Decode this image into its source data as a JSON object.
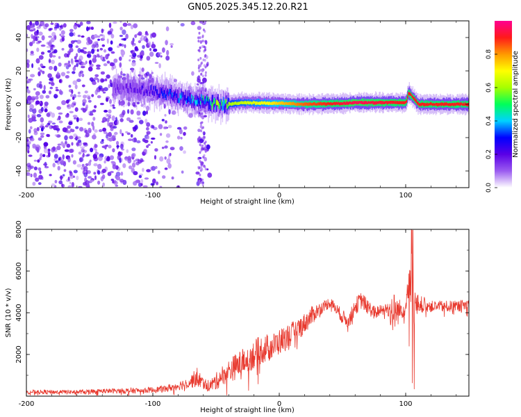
{
  "figure_title": "GN05.2025.345.12.20.R21",
  "chart_data": [
    {
      "type": "heatmap",
      "xlabel": "Height of straight line (km)",
      "ylabel": "Frequency (Hz)",
      "xlim": [
        -200,
        150
      ],
      "ylim": [
        -50,
        50
      ],
      "x_ticks": [
        -200,
        -100,
        0,
        100
      ],
      "x_tick_labels": [
        "-200",
        "-100",
        "0",
        "100"
      ],
      "y_ticks": [
        -40,
        -20,
        0,
        20,
        40
      ],
      "y_tick_labels": [
        "-40",
        "-20",
        "0",
        "20",
        "40"
      ],
      "colorbar": {
        "label": "Normalized spectral amplitude",
        "range": [
          0,
          1
        ],
        "ticks": [
          0.0,
          0.2,
          0.4,
          0.6,
          0.8
        ],
        "tick_labels": [
          "0.0",
          "0.2",
          "0.4",
          "0.6",
          "0.8"
        ],
        "colormap": [
          "#ffffff",
          "#9b5cf0",
          "#5a00e6",
          "#0000ff",
          "#00d2ff",
          "#00ff5a",
          "#a6ff00",
          "#ffff00",
          "#ff9900",
          "#ff1a1a",
          "#ff0090"
        ]
      },
      "ridge_frequency_hz": [
        {
          "x": -130,
          "f": 10
        },
        {
          "x": -110,
          "f": 9
        },
        {
          "x": -95,
          "f": 7
        },
        {
          "x": -85,
          "f": 6
        },
        {
          "x": -75,
          "f": 3
        },
        {
          "x": -60,
          "f": 2
        },
        {
          "x": -50,
          "f": 0
        },
        {
          "x": -40,
          "f": 0
        },
        {
          "x": -30,
          "f": 1
        },
        {
          "x": 0,
          "f": 0.5
        },
        {
          "x": 20,
          "f": 0
        },
        {
          "x": 50,
          "f": 0.5
        },
        {
          "x": 60,
          "f": 1
        },
        {
          "x": 100,
          "f": 1
        },
        {
          "x": 102,
          "f": 7
        },
        {
          "x": 110,
          "f": 0
        },
        {
          "x": 150,
          "f": 0
        }
      ],
      "ridge_amplitude": [
        {
          "x": -130,
          "a": 0.15
        },
        {
          "x": -100,
          "a": 0.25
        },
        {
          "x": -80,
          "a": 0.35
        },
        {
          "x": -60,
          "a": 0.45
        },
        {
          "x": -40,
          "a": 0.6
        },
        {
          "x": -10,
          "a": 0.7
        },
        {
          "x": 20,
          "a": 0.85
        },
        {
          "x": 60,
          "a": 0.95
        },
        {
          "x": 100,
          "a": 0.9
        },
        {
          "x": 150,
          "a": 0.9
        }
      ]
    },
    {
      "type": "line",
      "xlabel": "Height of straight line (km)",
      "ylabel": "SNR (10 * v/v)",
      "xlim": [
        -200,
        150
      ],
      "ylim": [
        0,
        8000
      ],
      "x_ticks": [
        -200,
        -100,
        0,
        100
      ],
      "x_tick_labels": [
        "-200",
        "-100",
        "0",
        "100"
      ],
      "y_ticks": [
        2000,
        4000,
        6000,
        8000
      ],
      "y_tick_labels": [
        "2000",
        "4000",
        "6000",
        "8000"
      ],
      "line_color": "#e8392e",
      "series": [
        {
          "name": "SNR",
          "x": [
            -200,
            -180,
            -160,
            -140,
            -120,
            -100,
            -90,
            -80,
            -70,
            -65,
            -60,
            -55,
            -50,
            -45,
            -40,
            -35,
            -30,
            -25,
            -20,
            -15,
            -10,
            -5,
            0,
            5,
            10,
            15,
            20,
            25,
            30,
            35,
            40,
            45,
            50,
            55,
            60,
            65,
            70,
            75,
            80,
            85,
            90,
            95,
            100,
            103,
            105,
            108,
            110,
            115,
            120,
            130,
            140,
            150
          ],
          "y": [
            200,
            200,
            200,
            250,
            250,
            300,
            350,
            500,
            700,
            900,
            600,
            500,
            700,
            1000,
            1200,
            1400,
            1600,
            1800,
            2000,
            2200,
            2300,
            2400,
            2600,
            2800,
            3000,
            3200,
            3500,
            3800,
            4100,
            4300,
            4500,
            4200,
            3800,
            3600,
            4300,
            4600,
            4300,
            4000,
            4100,
            4200,
            4000,
            4100,
            4300,
            5800,
            4200,
            4300,
            4400,
            4400,
            4300,
            4300,
            4300,
            4400
          ],
          "y_spread": [
            150,
            150,
            150,
            150,
            200,
            200,
            250,
            300,
            450,
            700,
            400,
            400,
            600,
            700,
            800,
            900,
            900,
            1000,
            1000,
            1000,
            1000,
            900,
            900,
            900,
            800,
            800,
            700,
            700,
            500,
            400,
            400,
            400,
            500,
            500,
            600,
            600,
            500,
            500,
            400,
            400,
            1500,
            800,
            600,
            2200,
            3000,
            1000,
            700,
            500,
            400,
            400,
            400,
            400
          ]
        }
      ]
    }
  ]
}
